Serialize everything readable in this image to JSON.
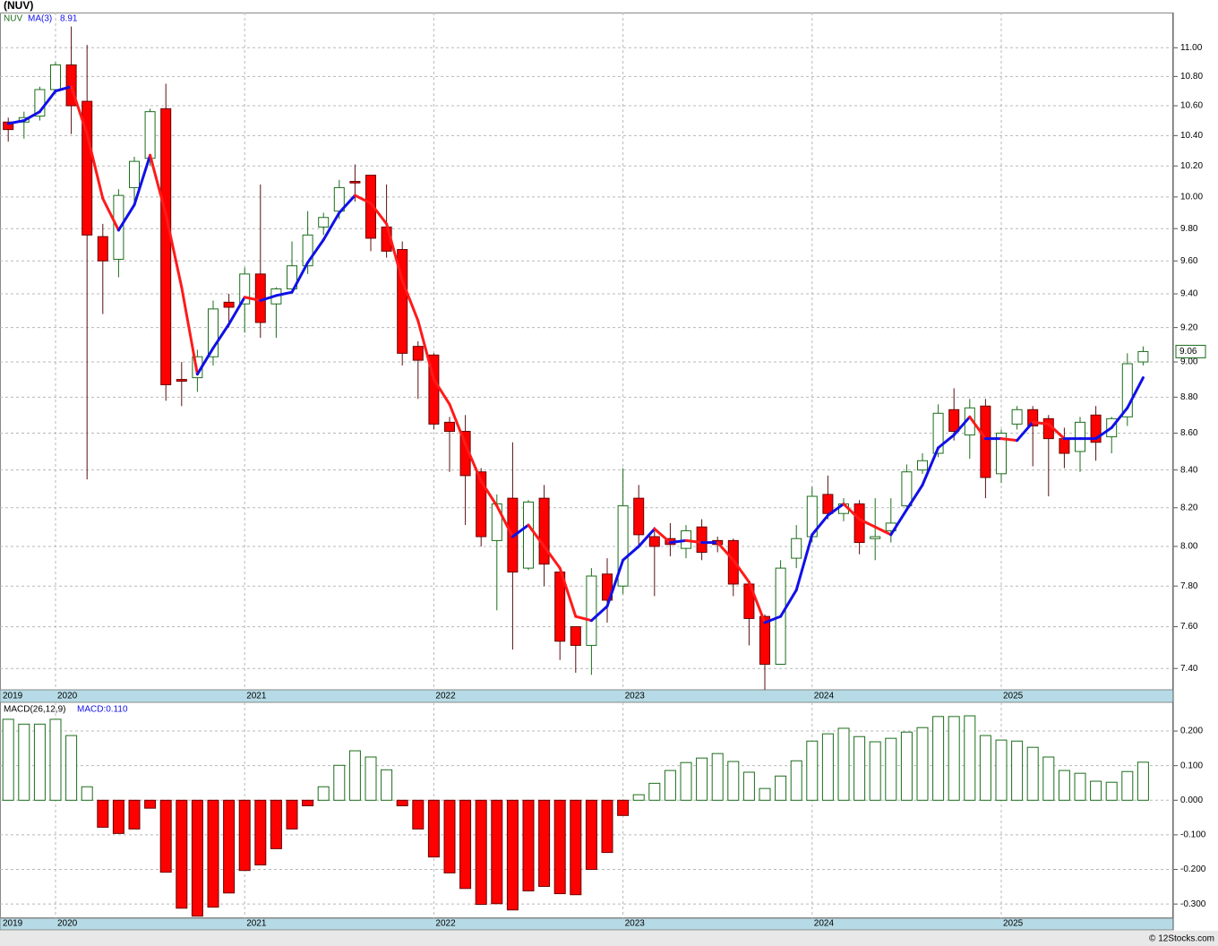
{
  "chart_data": [
    {
      "type": "candlestick",
      "title": "(NUV)",
      "symbol": "NUV",
      "categories": [
        "2019",
        null,
        null,
        "2020",
        null,
        null,
        null,
        null,
        null,
        null,
        null,
        null,
        null,
        null,
        null,
        "2021",
        null,
        null,
        null,
        null,
        null,
        null,
        null,
        null,
        null,
        null,
        null,
        "2022",
        null,
        null,
        null,
        null,
        null,
        null,
        null,
        null,
        null,
        null,
        null,
        "2023",
        null,
        null,
        null,
        null,
        null,
        null,
        null,
        null,
        null,
        null,
        null,
        "2024",
        null,
        null,
        null,
        null,
        null,
        null,
        null,
        null,
        null,
        null,
        null,
        "2025",
        null,
        null,
        null,
        null,
        null,
        null,
        null,
        null,
        null
      ],
      "open": [
        10.49,
        10.49,
        10.53,
        10.71,
        10.88,
        10.63,
        9.75,
        9.61,
        10.06,
        10.25,
        10.58,
        8.9,
        8.91,
        9.03,
        9.35,
        9.34,
        9.52,
        9.34,
        9.43,
        9.57,
        9.81,
        9.91,
        10.1,
        10.14,
        9.81,
        9.67,
        9.09,
        9.04,
        8.66,
        8.61,
        8.39,
        8.03,
        8.25,
        7.89,
        8.25,
        7.87,
        7.6,
        7.51,
        7.86,
        7.8,
        8.25,
        8.05,
        8.04,
        7.99,
        8.1,
        8.03,
        8.03,
        7.81,
        7.65,
        7.42,
        7.94,
        8.05,
        8.27,
        8.17,
        8.22,
        8.04,
        8.08,
        8.21,
        8.4,
        8.49,
        8.73,
        8.59,
        8.75,
        8.38,
        8.65,
        8.73,
        8.68,
        8.57,
        8.5,
        8.7,
        8.58,
        8.69,
        9.0
      ],
      "high": [
        10.52,
        10.56,
        10.73,
        10.9,
        11.15,
        11.02,
        9.83,
        10.05,
        10.26,
        10.58,
        10.75,
        9.0,
        9.07,
        9.36,
        9.4,
        9.56,
        10.08,
        9.44,
        9.72,
        9.91,
        9.9,
        10.11,
        10.21,
        10.14,
        10.08,
        9.72,
        9.12,
        9.05,
        8.69,
        8.7,
        8.41,
        8.27,
        8.55,
        8.24,
        8.32,
        7.87,
        7.6,
        7.89,
        7.94,
        8.41,
        8.32,
        8.1,
        8.12,
        8.11,
        8.14,
        8.05,
        8.04,
        7.82,
        7.66,
        7.93,
        8.11,
        8.31,
        8.37,
        8.25,
        8.24,
        8.25,
        8.25,
        8.43,
        8.49,
        8.76,
        8.85,
        8.79,
        8.79,
        8.62,
        8.75,
        8.75,
        8.7,
        8.63,
        8.69,
        8.75,
        8.69,
        9.05,
        9.09
      ],
      "low": [
        10.36,
        10.38,
        10.5,
        10.68,
        10.41,
        8.35,
        9.28,
        9.5,
        9.97,
        10.2,
        8.78,
        8.75,
        8.83,
        8.98,
        9.2,
        9.17,
        9.14,
        9.14,
        9.4,
        9.52,
        9.76,
        9.86,
        9.97,
        9.66,
        9.62,
        8.98,
        8.79,
        8.62,
        8.39,
        8.11,
        8.0,
        7.68,
        7.49,
        7.88,
        7.8,
        7.44,
        7.38,
        7.37,
        7.62,
        7.76,
        7.99,
        7.75,
        7.95,
        7.94,
        7.93,
        7.97,
        7.75,
        7.51,
        7.3,
        7.42,
        7.89,
        8.02,
        8.14,
        8.13,
        7.96,
        7.93,
        8.02,
        8.18,
        8.38,
        8.47,
        8.56,
        8.46,
        8.25,
        8.33,
        8.62,
        8.42,
        8.26,
        8.41,
        8.39,
        8.45,
        8.49,
        8.64,
        8.98
      ],
      "close": [
        10.44,
        10.52,
        10.71,
        10.88,
        10.6,
        9.76,
        9.6,
        10.01,
        10.23,
        10.56,
        8.87,
        8.89,
        9.03,
        9.31,
        9.32,
        9.52,
        9.23,
        9.43,
        9.57,
        9.76,
        9.87,
        10.06,
        10.09,
        9.74,
        9.66,
        9.05,
        9.01,
        8.65,
        8.61,
        8.37,
        8.05,
        8.22,
        7.87,
        8.23,
        7.91,
        7.53,
        7.51,
        7.85,
        7.73,
        8.21,
        8.06,
        8.0,
        8.01,
        8.08,
        7.97,
        8.01,
        7.81,
        7.64,
        7.42,
        7.89,
        8.04,
        8.26,
        8.17,
        8.22,
        8.02,
        8.05,
        8.12,
        8.39,
        8.45,
        8.71,
        8.61,
        8.74,
        8.36,
        8.6,
        8.73,
        8.64,
        8.57,
        8.49,
        8.66,
        8.55,
        8.68,
        8.99,
        9.06
      ],
      "up_color": "#1b6e1b",
      "down_color": "#ff0000",
      "ma": {
        "name": "MA(3)",
        "last": 8.91,
        "up_color": "#1010e8",
        "down_color": "#ff1a1a",
        "values": [
          10.48,
          10.5,
          10.56,
          10.7,
          10.73,
          10.41,
          9.99,
          9.79,
          9.95,
          10.27,
          9.89,
          9.44,
          8.93,
          9.08,
          9.22,
          9.38,
          9.36,
          9.39,
          9.41,
          9.59,
          9.73,
          9.9,
          10.01,
          9.96,
          9.83,
          9.48,
          9.24,
          8.9,
          8.76,
          8.54,
          8.34,
          8.21,
          8.05,
          8.11,
          8.0,
          7.89,
          7.65,
          7.63,
          7.7,
          7.93,
          8.0,
          8.09,
          8.02,
          8.03,
          8.02,
          8.02,
          7.93,
          7.82,
          7.62,
          7.65,
          7.78,
          8.06,
          8.16,
          8.22,
          8.14,
          8.1,
          8.06,
          8.19,
          8.32,
          8.52,
          8.59,
          8.69,
          8.57,
          8.57,
          8.56,
          8.66,
          8.65,
          8.57,
          8.57,
          8.57,
          8.63,
          8.74,
          8.91
        ]
      },
      "last_price": 9.06,
      "log_scale": true,
      "grid": true,
      "ylim": [
        7.3,
        11.25
      ],
      "yticks": [
        {
          "value": 7.4,
          "label": "7.40"
        },
        {
          "value": 7.6,
          "label": "7.60"
        },
        {
          "value": 7.8,
          "label": "7.80"
        },
        {
          "value": 8,
          "label": "8.00"
        },
        {
          "value": 8.2,
          "label": "8.20"
        },
        {
          "value": 8.4,
          "label": "8.40"
        },
        {
          "value": 8.6,
          "label": "8.60"
        },
        {
          "value": 8.8,
          "label": "8.80"
        },
        {
          "value": 9,
          "label": "9.00"
        },
        {
          "value": 9.2,
          "label": "9.20"
        },
        {
          "value": 9.4,
          "label": "9.40"
        },
        {
          "value": 9.6,
          "label": "9.60"
        },
        {
          "value": 9.8,
          "label": "9.80"
        },
        {
          "value": 10,
          "label": "10.00"
        },
        {
          "value": 10.2,
          "label": "10.20"
        },
        {
          "value": 10.4,
          "label": "10.40"
        },
        {
          "value": 10.6,
          "label": "10.60"
        },
        {
          "value": 10.8,
          "label": "10.80"
        },
        {
          "value": 11,
          "label": "11.00"
        }
      ]
    },
    {
      "type": "bar",
      "name": "MACD(26,12,9)",
      "legend": "MACD:0.110",
      "categories": [
        "2019",
        null,
        null,
        "2020",
        null,
        null,
        null,
        null,
        null,
        null,
        null,
        null,
        null,
        null,
        null,
        "2021",
        null,
        null,
        null,
        null,
        null,
        null,
        null,
        null,
        null,
        null,
        null,
        "2022",
        null,
        null,
        null,
        null,
        null,
        null,
        null,
        null,
        null,
        null,
        null,
        "2023",
        null,
        null,
        null,
        null,
        null,
        null,
        null,
        null,
        null,
        null,
        null,
        "2024",
        null,
        null,
        null,
        null,
        null,
        null,
        null,
        null,
        null,
        null,
        null,
        "2025",
        null,
        null,
        null,
        null,
        null,
        null,
        null,
        null,
        null
      ],
      "values": [
        0.234,
        0.22,
        0.22,
        0.234,
        0.187,
        0.039,
        -0.078,
        -0.096,
        -0.083,
        -0.023,
        -0.208,
        -0.312,
        -0.335,
        -0.309,
        -0.268,
        -0.203,
        -0.187,
        -0.14,
        -0.083,
        -0.016,
        0.039,
        0.101,
        0.143,
        0.125,
        0.088,
        -0.016,
        -0.083,
        -0.164,
        -0.21,
        -0.255,
        -0.301,
        -0.299,
        -0.317,
        -0.262,
        -0.249,
        -0.27,
        -0.273,
        -0.2,
        -0.151,
        -0.044,
        0.016,
        0.049,
        0.086,
        0.109,
        0.122,
        0.135,
        0.112,
        0.081,
        0.034,
        0.07,
        0.114,
        0.171,
        0.192,
        0.208,
        0.184,
        0.169,
        0.179,
        0.197,
        0.21,
        0.242,
        0.242,
        0.244,
        0.187,
        0.174,
        0.171,
        0.153,
        0.125,
        0.086,
        0.078,
        0.055,
        0.052,
        0.083,
        0.11
      ],
      "up_color": "#1b6e1b",
      "down_color": "#ff0000",
      "grid": true,
      "ylim": [
        -0.341,
        0.283
      ],
      "yticks": [
        {
          "value": 0.2,
          "label": "0.200"
        },
        {
          "value": 0.1,
          "label": "0.100"
        },
        {
          "value": 0,
          "label": "0.000"
        },
        {
          "value": -0.1,
          "label": "-0.100"
        },
        {
          "value": -0.2,
          "label": "-0.200"
        },
        {
          "value": -0.3,
          "label": "-0.300"
        }
      ]
    }
  ],
  "footer": "© 12Stocks.com"
}
